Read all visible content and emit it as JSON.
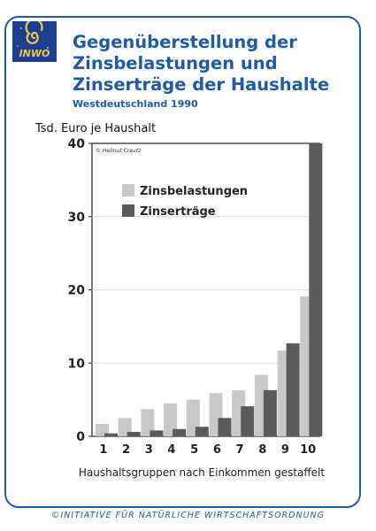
{
  "card": {
    "logo_text": "INWO",
    "title_lines": [
      "Gegenüberstellung der",
      "Zinsbelastungen und",
      "Zinserträge der Haushalte"
    ],
    "subtitle": "Westdeutschland 1990",
    "unit_label": "Tsd. Euro je Haushalt",
    "copyright": "© Helmut Creutz",
    "footer": "©INITIATIVE FÜR NATÜRLICHE WIRTSCHAFTSORDNUNG",
    "colors": {
      "accent": "#1f5aa6",
      "series_light": "#c8c8c8",
      "series_dark": "#5b5b5b"
    }
  },
  "chart_data": {
    "type": "bar",
    "title": "Gegenüberstellung der Zinsbelastungen und Zinserträge der Haushalte",
    "subtitle": "Westdeutschland 1990",
    "ylabel": "Tsd. Euro je Haushalt",
    "xlabel": "Haushaltsgruppen nach Einkommen gestaffelt",
    "categories": [
      "1",
      "2",
      "3",
      "4",
      "5",
      "6",
      "7",
      "8",
      "9",
      "10"
    ],
    "series": [
      {
        "name": "Zinsbelastungen",
        "color": "#c8c8c8",
        "values": [
          1.7,
          2.5,
          3.7,
          4.5,
          5.0,
          5.9,
          6.3,
          8.4,
          11.7,
          19.1
        ]
      },
      {
        "name": "Zinserträge",
        "color": "#5b5b5b",
        "values": [
          0.4,
          0.6,
          0.8,
          1.0,
          1.3,
          2.5,
          4.1,
          6.3,
          12.7,
          40.0
        ]
      }
    ],
    "yticks": [
      0,
      10,
      20,
      30,
      40
    ],
    "ylim": [
      0,
      40
    ],
    "grid": true,
    "legend": "top-left"
  }
}
